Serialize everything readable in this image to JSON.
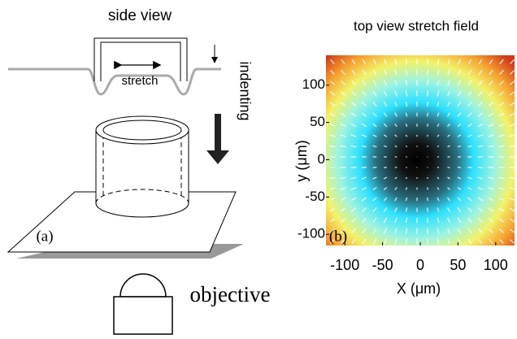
{
  "panel_a": {
    "side_view_title": "side view",
    "stretch_label": "stretch",
    "indenting_label": "indenting",
    "panel_label": "(a)",
    "objective_label": "objective"
  },
  "panel_b": {
    "title": "top view stretch field",
    "panel_label": "(b)",
    "xlabel": "X (μm)",
    "ylabel": "y (μm)",
    "xlim": [
      -125,
      125
    ],
    "ylim": [
      -115,
      140
    ],
    "xticks": [
      -100,
      -50,
      0,
      50,
      100
    ],
    "yticks": [
      -100,
      -50,
      0,
      50,
      100
    ]
  }
}
